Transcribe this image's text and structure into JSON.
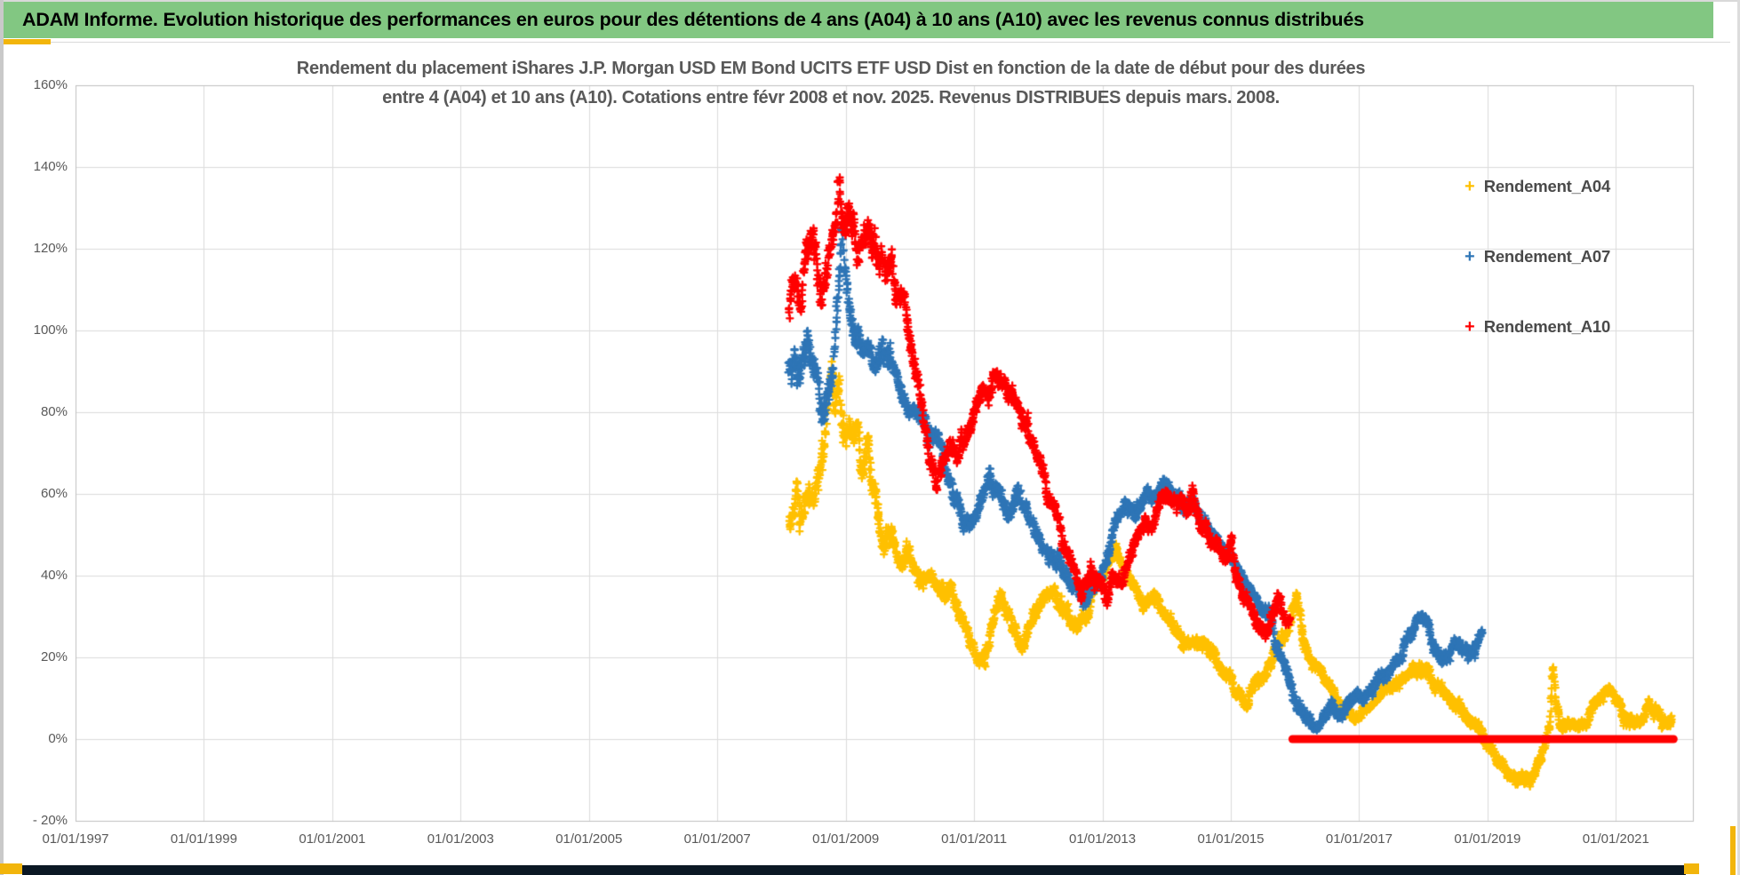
{
  "header": {
    "title": "ADAM Informe. Evolution historique des performances en euros pour des détentions de 4 ans (A04) à 10 ans (A10) avec les revenus connus distribués",
    "bg_color": "#82c782"
  },
  "accents": {
    "yellow": "#f2b50b",
    "bottom_bar": "#0b1824"
  },
  "chart_data": {
    "type": "scatter",
    "title_line1": "Rendement du placement iShares J.P. Morgan USD EM Bond UCITS ETF USD Dist en fonction de la date de début pour des durées",
    "title_line2": "entre 4 (A04) et 10 ans (A10). Cotations entre févr 2008 et nov. 2025. Revenus DISTRIBUES depuis mars. 2008.",
    "grid": true,
    "legend_position": "right",
    "x_axis": {
      "tick_labels": [
        "01/01/1997",
        "01/01/1999",
        "01/01/2001",
        "01/01/2003",
        "01/01/2005",
        "01/01/2007",
        "01/01/2009",
        "01/01/2011",
        "01/01/2013",
        "01/01/2015",
        "01/01/2017",
        "01/01/2019",
        "01/01/2021"
      ],
      "tick_years": [
        1997,
        1999,
        2001,
        2003,
        2005,
        2007,
        2009,
        2011,
        2013,
        2015,
        2017,
        2019,
        2021
      ],
      "range": [
        1997,
        2022.2
      ]
    },
    "y_axis": {
      "tick_labels": [
        "160%",
        "140%",
        "120%",
        "100%",
        "80%",
        "60%",
        "40%",
        "20%",
        "0%",
        "- 20%"
      ],
      "tick_values": [
        160,
        140,
        120,
        100,
        80,
        60,
        40,
        20,
        0,
        -20
      ],
      "range": [
        -20,
        160
      ]
    },
    "legend": {
      "items": [
        {
          "label": "Rendement_A04",
          "marker_glyph": "+",
          "color": "#FFC000"
        },
        {
          "label": "Rendement_A07",
          "marker_glyph": "+",
          "color": "#2E75B6"
        },
        {
          "label": "Rendement_A10",
          "marker_glyph": "+",
          "color": "#FF0000"
        }
      ]
    },
    "series": [
      {
        "name": "Rendement_A04",
        "color": "#FFC000",
        "marker": "plus",
        "seed": 7,
        "spread": [
          [
            2009.7,
            4.5
          ],
          [
            2013,
            2.2
          ],
          [
            2025,
            1.6
          ]
        ],
        "anchors": [
          [
            2008.12,
            55
          ],
          [
            2008.22,
            60
          ],
          [
            2008.3,
            53
          ],
          [
            2008.4,
            58
          ],
          [
            2008.5,
            55
          ],
          [
            2008.6,
            63
          ],
          [
            2008.7,
            73
          ],
          [
            2008.78,
            88
          ],
          [
            2008.83,
            80
          ],
          [
            2008.9,
            86
          ],
          [
            2008.97,
            75
          ],
          [
            2009.05,
            80
          ],
          [
            2009.15,
            77
          ],
          [
            2009.25,
            65
          ],
          [
            2009.35,
            70
          ],
          [
            2009.45,
            62
          ],
          [
            2009.55,
            51
          ],
          [
            2009.7,
            53
          ],
          [
            2009.85,
            44
          ],
          [
            2010.0,
            46
          ],
          [
            2010.15,
            40
          ],
          [
            2010.3,
            42
          ],
          [
            2010.45,
            38
          ],
          [
            2010.6,
            36
          ],
          [
            2010.75,
            33
          ],
          [
            2010.9,
            26
          ],
          [
            2011.05,
            21
          ],
          [
            2011.17,
            20
          ],
          [
            2011.3,
            28
          ],
          [
            2011.4,
            34
          ],
          [
            2011.5,
            30
          ],
          [
            2011.62,
            27
          ],
          [
            2011.75,
            24
          ],
          [
            2011.9,
            31
          ],
          [
            2012.05,
            34
          ],
          [
            2012.2,
            36
          ],
          [
            2012.35,
            33
          ],
          [
            2012.5,
            30
          ],
          [
            2012.65,
            28
          ],
          [
            2012.8,
            33
          ],
          [
            2012.95,
            38
          ],
          [
            2013.1,
            44
          ],
          [
            2013.2,
            46
          ],
          [
            2013.35,
            41
          ],
          [
            2013.5,
            36
          ],
          [
            2013.65,
            33
          ],
          [
            2013.8,
            34
          ],
          [
            2013.95,
            31
          ],
          [
            2014.1,
            27
          ],
          [
            2014.25,
            23
          ],
          [
            2014.4,
            25
          ],
          [
            2014.55,
            23
          ],
          [
            2014.7,
            21
          ],
          [
            2014.85,
            18
          ],
          [
            2015.0,
            15
          ],
          [
            2015.12,
            11
          ],
          [
            2015.25,
            9
          ],
          [
            2015.4,
            13
          ],
          [
            2015.55,
            16
          ],
          [
            2015.7,
            21
          ],
          [
            2015.85,
            26
          ],
          [
            2015.97,
            31
          ],
          [
            2016.03,
            34
          ],
          [
            2016.12,
            26
          ],
          [
            2016.22,
            20
          ],
          [
            2016.35,
            17
          ],
          [
            2016.5,
            13
          ],
          [
            2016.65,
            10
          ],
          [
            2016.8,
            8
          ],
          [
            2016.95,
            6
          ],
          [
            2017.1,
            8
          ],
          [
            2017.25,
            10
          ],
          [
            2017.4,
            12
          ],
          [
            2017.55,
            14
          ],
          [
            2017.7,
            16
          ],
          [
            2017.85,
            18
          ],
          [
            2018.0,
            17
          ],
          [
            2018.12,
            15
          ],
          [
            2018.25,
            12
          ],
          [
            2018.4,
            10
          ],
          [
            2018.55,
            8
          ],
          [
            2018.7,
            5
          ],
          [
            2018.85,
            2
          ],
          [
            2019.0,
            -2
          ],
          [
            2019.15,
            -5
          ],
          [
            2019.3,
            -8
          ],
          [
            2019.45,
            -10
          ],
          [
            2019.6,
            -11
          ],
          [
            2019.75,
            -8
          ],
          [
            2019.87,
            -4
          ],
          [
            2019.97,
            3
          ],
          [
            2020.02,
            17
          ],
          [
            2020.07,
            8
          ],
          [
            2020.12,
            3
          ],
          [
            2020.22,
            2
          ],
          [
            2020.35,
            5
          ],
          [
            2020.5,
            4
          ],
          [
            2020.65,
            8
          ],
          [
            2020.8,
            11
          ],
          [
            2020.92,
            13
          ],
          [
            2021.02,
            9
          ],
          [
            2021.12,
            6
          ],
          [
            2021.22,
            4
          ],
          [
            2021.32,
            3
          ],
          [
            2021.42,
            6
          ],
          [
            2021.52,
            8
          ],
          [
            2021.62,
            6
          ],
          [
            2021.72,
            4
          ],
          [
            2021.87,
            5
          ]
        ]
      },
      {
        "name": "Rendement_A07",
        "color": "#2E75B6",
        "marker": "plus",
        "seed": 13,
        "spread": [
          [
            2009.7,
            4.8
          ],
          [
            2013,
            2.4
          ],
          [
            2025,
            1.8
          ]
        ],
        "anchors": [
          [
            2008.12,
            92
          ],
          [
            2008.22,
            95
          ],
          [
            2008.32,
            89
          ],
          [
            2008.42,
            96
          ],
          [
            2008.52,
            92
          ],
          [
            2008.62,
            84
          ],
          [
            2008.72,
            80
          ],
          [
            2008.82,
            92
          ],
          [
            2008.9,
            108
          ],
          [
            2008.94,
            122
          ],
          [
            2008.98,
            114
          ],
          [
            2009.06,
            100
          ],
          [
            2009.16,
            94
          ],
          [
            2009.3,
            99
          ],
          [
            2009.45,
            95
          ],
          [
            2009.6,
            99
          ],
          [
            2009.75,
            92
          ],
          [
            2009.9,
            85
          ],
          [
            2010.05,
            80
          ],
          [
            2010.2,
            77
          ],
          [
            2010.35,
            74
          ],
          [
            2010.5,
            70
          ],
          [
            2010.65,
            62
          ],
          [
            2010.8,
            55
          ],
          [
            2010.95,
            50
          ],
          [
            2011.1,
            57
          ],
          [
            2011.25,
            64
          ],
          [
            2011.4,
            60
          ],
          [
            2011.55,
            56
          ],
          [
            2011.7,
            61
          ],
          [
            2011.85,
            54
          ],
          [
            2012.0,
            49
          ],
          [
            2012.15,
            45
          ],
          [
            2012.3,
            44
          ],
          [
            2012.45,
            41
          ],
          [
            2012.6,
            37
          ],
          [
            2012.75,
            34
          ],
          [
            2012.9,
            38
          ],
          [
            2013.05,
            44
          ],
          [
            2013.2,
            53
          ],
          [
            2013.35,
            57
          ],
          [
            2013.5,
            54
          ],
          [
            2013.65,
            58
          ],
          [
            2013.8,
            61
          ],
          [
            2013.95,
            62
          ],
          [
            2014.1,
            59
          ],
          [
            2014.25,
            57
          ],
          [
            2014.4,
            59
          ],
          [
            2014.55,
            53
          ],
          [
            2014.7,
            49
          ],
          [
            2014.85,
            47
          ],
          [
            2015.0,
            44
          ],
          [
            2015.15,
            39
          ],
          [
            2015.3,
            35
          ],
          [
            2015.45,
            32
          ],
          [
            2015.6,
            29
          ],
          [
            2015.75,
            22
          ],
          [
            2015.9,
            14
          ],
          [
            2016.0,
            10
          ],
          [
            2016.1,
            7
          ],
          [
            2016.2,
            4
          ],
          [
            2016.32,
            2
          ],
          [
            2016.45,
            5
          ],
          [
            2016.6,
            8
          ],
          [
            2016.72,
            6
          ],
          [
            2016.9,
            9
          ],
          [
            2017.05,
            11
          ],
          [
            2017.2,
            13
          ],
          [
            2017.35,
            15
          ],
          [
            2017.5,
            17
          ],
          [
            2017.65,
            21
          ],
          [
            2017.8,
            25
          ],
          [
            2017.95,
            29
          ],
          [
            2018.07,
            27
          ],
          [
            2018.17,
            22
          ],
          [
            2018.27,
            18
          ],
          [
            2018.37,
            21
          ],
          [
            2018.5,
            24
          ],
          [
            2018.6,
            22
          ],
          [
            2018.7,
            20
          ],
          [
            2018.8,
            23
          ],
          [
            2018.92,
            25
          ]
        ]
      },
      {
        "name": "Rendement_A10",
        "color": "#FF0000",
        "marker": "plus",
        "seed": 29,
        "spread": [
          [
            2009.8,
            5.0
          ],
          [
            2013,
            2.6
          ],
          [
            2025,
            2.0
          ]
        ],
        "anchors": [
          [
            2008.12,
            107
          ],
          [
            2008.2,
            115
          ],
          [
            2008.3,
            110
          ],
          [
            2008.4,
            117
          ],
          [
            2008.5,
            120
          ],
          [
            2008.58,
            112
          ],
          [
            2008.66,
            108
          ],
          [
            2008.74,
            118
          ],
          [
            2008.8,
            126
          ],
          [
            2008.86,
            132
          ],
          [
            2008.9,
            140
          ],
          [
            2008.95,
            130
          ],
          [
            2009.02,
            127
          ],
          [
            2009.12,
            123
          ],
          [
            2009.22,
            121
          ],
          [
            2009.32,
            124
          ],
          [
            2009.42,
            119
          ],
          [
            2009.52,
            121
          ],
          [
            2009.62,
            117
          ],
          [
            2009.72,
            113
          ],
          [
            2009.82,
            110
          ],
          [
            2009.92,
            107
          ],
          [
            2010.02,
            98
          ],
          [
            2010.12,
            88
          ],
          [
            2010.22,
            78
          ],
          [
            2010.32,
            68
          ],
          [
            2010.42,
            64
          ],
          [
            2010.52,
            70
          ],
          [
            2010.62,
            73
          ],
          [
            2010.72,
            70
          ],
          [
            2010.82,
            73
          ],
          [
            2010.92,
            76
          ],
          [
            2011.02,
            80
          ],
          [
            2011.12,
            83
          ],
          [
            2011.22,
            86
          ],
          [
            2011.32,
            88
          ],
          [
            2011.42,
            90
          ],
          [
            2011.52,
            86
          ],
          [
            2011.62,
            83
          ],
          [
            2011.72,
            80
          ],
          [
            2011.82,
            78
          ],
          [
            2011.92,
            74
          ],
          [
            2012.02,
            69
          ],
          [
            2012.12,
            62
          ],
          [
            2012.22,
            57
          ],
          [
            2012.37,
            50
          ],
          [
            2012.52,
            41
          ],
          [
            2012.67,
            35
          ],
          [
            2012.82,
            40
          ],
          [
            2012.92,
            37
          ],
          [
            2013.07,
            35
          ],
          [
            2013.17,
            40
          ],
          [
            2013.32,
            38
          ],
          [
            2013.47,
            46
          ],
          [
            2013.62,
            54
          ],
          [
            2013.77,
            52
          ],
          [
            2013.92,
            58
          ],
          [
            2014.02,
            61
          ],
          [
            2014.17,
            58
          ],
          [
            2014.32,
            57
          ],
          [
            2014.42,
            60
          ],
          [
            2014.52,
            53
          ],
          [
            2014.67,
            49
          ],
          [
            2014.82,
            48
          ],
          [
            2014.95,
            45
          ],
          [
            2015.02,
            49
          ],
          [
            2015.08,
            40
          ],
          [
            2015.18,
            35
          ],
          [
            2015.32,
            30
          ],
          [
            2015.47,
            27
          ],
          [
            2015.57,
            25
          ],
          [
            2015.67,
            31
          ],
          [
            2015.77,
            34
          ],
          [
            2015.87,
            29
          ],
          [
            2015.92,
            31
          ]
        ]
      }
    ],
    "zero_line": {
      "series": "Rendement_A10",
      "color": "#FF0000",
      "value": 0,
      "from": 2015.96,
      "to": 2021.9,
      "thickness": 9
    }
  }
}
